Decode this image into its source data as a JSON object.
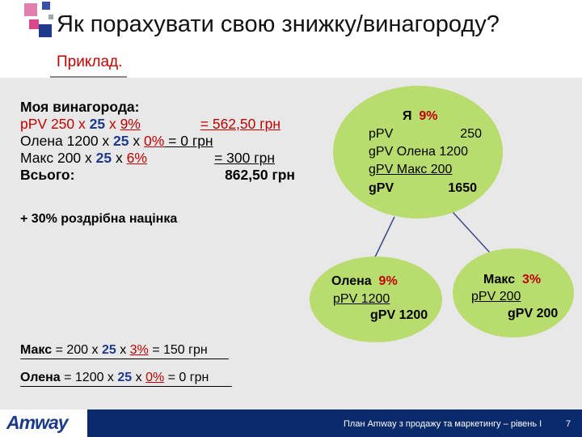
{
  "title": "Як порахувати свою знижку/винагороду?",
  "subtitle": "Приклад.",
  "calc": {
    "heading": "Моя винагорода:",
    "line1": {
      "prefix": "pPV 250 x ",
      "mult": "25",
      "mid": " x ",
      "pct": "9%",
      "result": "= 562,50 грн"
    },
    "line2": {
      "prefix": "Олена 1200 x ",
      "mult": "25",
      "mid": " x ",
      "pct": "0%",
      "result": " = 0 грн"
    },
    "line3": {
      "prefix": "Макс 200 x ",
      "mult": "25",
      "mid": " x ",
      "pct": "6%",
      "result": "= 300  грн"
    },
    "total_label": "Всього:",
    "total_value": "862,50 грн"
  },
  "markup_note": {
    "pct": "+ 30%",
    "text": " роздрібна націнка"
  },
  "bubble_me": {
    "name": "Я",
    "pct": "9%",
    "ppv_label": "pPV",
    "ppv_value": "250",
    "gpv1": "gPV Олена 1200",
    "gpv2": "gPV Макс   200",
    "gpv_label": "gPV",
    "gpv_value": "1650"
  },
  "bubble_olena": {
    "name": "Олена",
    "pct": "9%",
    "ppv": "pPV 1200",
    "gpv": "gPV 1200"
  },
  "bubble_maks": {
    "name": "Макс",
    "pct": "3%",
    "ppv": "pPV 200",
    "gpv": "gPV 200"
  },
  "bottom": {
    "maks": {
      "name": "Макс",
      "prefix": " = 200 x ",
      "mult": "25",
      "mid": " x ",
      "pct": "3%",
      "result": " = 150 грн"
    },
    "olena": {
      "name": "Олена",
      "prefix": " = 1200 x ",
      "mult": "25",
      "mid": " x ",
      "pct": "0%",
      "result": " = 0 грн"
    }
  },
  "footer": {
    "logo": "Amway",
    "text": "План Amway з продажу та маркетингу – рівень I",
    "page": "7"
  },
  "colors": {
    "accent_red": "#c00000",
    "navy": "#0a2a6b",
    "bubble_green": "#b8dd6e",
    "square_pink": "#d9468a",
    "square_blue": "#1f3a8a"
  }
}
